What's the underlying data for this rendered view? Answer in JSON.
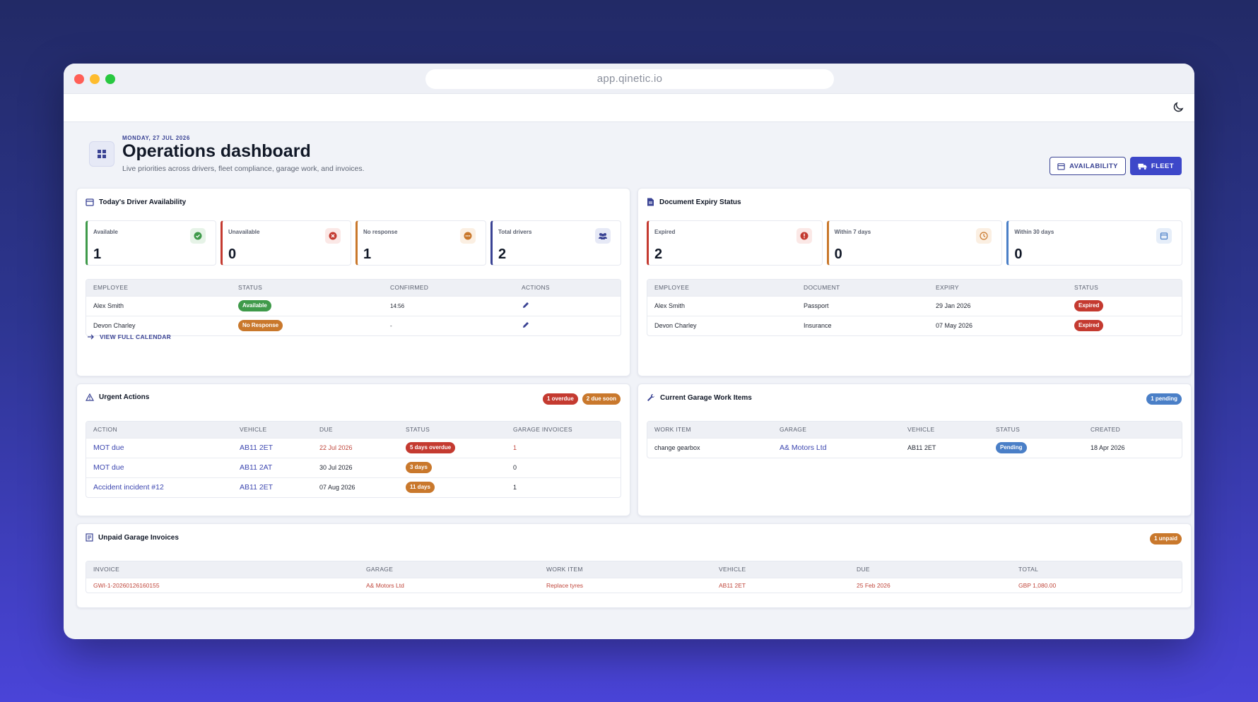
{
  "browser": {
    "url": "app.qinetic.io"
  },
  "header": {
    "date": "MONDAY, 27 JUL 2026",
    "title": "Operations dashboard",
    "subtitle": "Live priorities across drivers, fleet compliance, garage work, and invoices.",
    "buttons": {
      "availability": "AVAILABILITY",
      "fleet": "FLEET"
    }
  },
  "colors": {
    "accent": "#3d47c9",
    "green": "#3f9a4a",
    "red": "#c43a30",
    "orange": "#c9782c",
    "blue": "#4a7fc7"
  },
  "driver_availability": {
    "title": "Today's Driver Availability",
    "stats": [
      {
        "label": "Available",
        "value": "1",
        "icon": "check-circle-icon"
      },
      {
        "label": "Unavailable",
        "value": "0",
        "icon": "x-circle-icon"
      },
      {
        "label": "No response",
        "value": "1",
        "icon": "ellipsis-circle-icon"
      },
      {
        "label": "Total drivers",
        "value": "2",
        "icon": "people-icon"
      }
    ],
    "columns": [
      "EMPLOYEE",
      "STATUS",
      "CONFIRMED",
      "ACTIONS"
    ],
    "rows": [
      {
        "employee": "Alex Smith",
        "status": "Available",
        "confirmed": "14:56"
      },
      {
        "employee": "Devon Charley",
        "status": "No Response",
        "confirmed": "-"
      }
    ],
    "calendar_link": "VIEW FULL CALENDAR"
  },
  "document_expiry": {
    "title": "Document Expiry Status",
    "stats": [
      {
        "label": "Expired",
        "value": "2",
        "icon": "alert-circle-icon"
      },
      {
        "label": "Within 7 days",
        "value": "0",
        "icon": "clock-icon"
      },
      {
        "label": "Within 30 days",
        "value": "0",
        "icon": "calendar-icon"
      }
    ],
    "columns": [
      "EMPLOYEE",
      "DOCUMENT",
      "EXPIRY",
      "STATUS"
    ],
    "rows": [
      {
        "employee": "Alex Smith",
        "document": "Passport",
        "expiry": "29 Jan 2026",
        "status": "Expired"
      },
      {
        "employee": "Devon Charley",
        "document": "Insurance",
        "expiry": "07 May 2026",
        "status": "Expired"
      }
    ]
  },
  "urgent_actions": {
    "title": "Urgent Actions",
    "badges": {
      "overdue": "1 overdue",
      "due_soon": "2 due soon"
    },
    "columns": [
      "ACTION",
      "VEHICLE",
      "DUE",
      "STATUS",
      "GARAGE INVOICES"
    ],
    "rows": [
      {
        "action": "MOT due",
        "vehicle": "AB11 2ET",
        "due": "22 Jul 2026",
        "status": "5 days overdue",
        "invoices": "1"
      },
      {
        "action": "MOT due",
        "vehicle": "AB11 2AT",
        "due": "30 Jul 2026",
        "status": "3 days",
        "invoices": "0"
      },
      {
        "action": "Accident incident #12",
        "vehicle": "AB11 2ET",
        "due": "07 Aug 2026",
        "status": "11 days",
        "invoices": "1"
      }
    ]
  },
  "garage_work": {
    "title": "Current Garage Work Items",
    "badge": "1 pending",
    "columns": [
      "WORK ITEM",
      "GARAGE",
      "VEHICLE",
      "STATUS",
      "CREATED"
    ],
    "rows": [
      {
        "item": "change gearbox",
        "garage": "A& Motors Ltd",
        "vehicle": "AB11 2ET",
        "status": "Pending",
        "created": "18 Apr 2026"
      }
    ]
  },
  "unpaid_invoices": {
    "title": "Unpaid Garage Invoices",
    "badge": "1 unpaid",
    "columns": [
      "INVOICE",
      "GARAGE",
      "WORK ITEM",
      "VEHICLE",
      "DUE",
      "TOTAL"
    ],
    "rows": [
      {
        "invoice": "GWI-1-20260126160155",
        "garage": "A& Motors Ltd",
        "item": "Replace tyres",
        "vehicle": "AB11 2ET",
        "due": "25 Feb 2026",
        "total": "GBP 1,080.00"
      }
    ]
  }
}
